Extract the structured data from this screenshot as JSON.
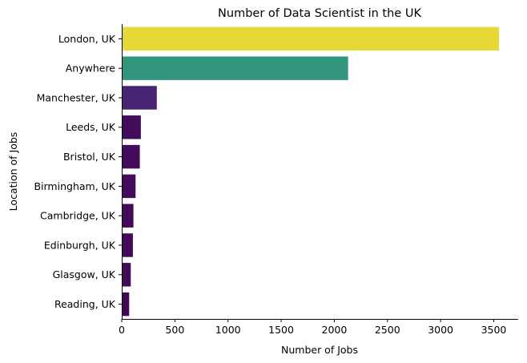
{
  "chart_data": {
    "type": "bar",
    "orientation": "horizontal",
    "title": "Number of Data Scientist in the UK",
    "xlabel": "Number of Jobs",
    "ylabel": "Location of Jobs",
    "categories": [
      "London, UK",
      "Anywhere",
      "Manchester, UK",
      "Leeds, UK",
      "Bristol, UK",
      "Birmingham, UK",
      "Cambridge, UK",
      "Edinburgh, UK",
      "Glasgow, UK",
      "Reading, UK"
    ],
    "values": [
      3550,
      2130,
      330,
      180,
      170,
      130,
      110,
      105,
      85,
      70
    ],
    "colors": [
      "#e6d935",
      "#32967f",
      "#482472",
      "#430b5c",
      "#430b5c",
      "#430c5b",
      "#420a58",
      "#420a58",
      "#420a57",
      "#410957"
    ],
    "xlim": [
      0,
      3730
    ],
    "xticks": [
      0,
      500,
      1000,
      1500,
      2000,
      2500,
      3000,
      3500
    ],
    "grid": false,
    "legend": "none"
  }
}
